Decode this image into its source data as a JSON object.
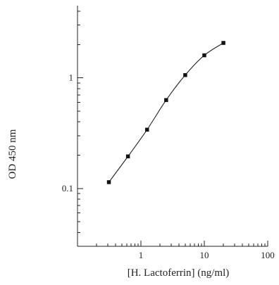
{
  "chart_data": {
    "type": "scatter",
    "xlabel": "[H. Lactoferrin] (ng/ml)",
    "ylabel": "OD 450 nm",
    "x_scale": "log",
    "y_scale": "log",
    "xlim": [
      0.1,
      100
    ],
    "ylim": [
      0.03,
      4.5
    ],
    "x_ticks": [
      {
        "value": 1,
        "label": "1"
      },
      {
        "value": 10,
        "label": "10"
      },
      {
        "value": 100,
        "label": "100"
      }
    ],
    "y_ticks": [
      {
        "value": 0.1,
        "label": "0.1"
      },
      {
        "value": 1,
        "label": "1"
      }
    ],
    "grid": false,
    "series": [
      {
        "x": [
          0.3125,
          0.625,
          1.25,
          2.5,
          5,
          10,
          20
        ],
        "y": [
          0.114,
          0.195,
          0.34,
          0.63,
          1.06,
          1.6,
          2.07
        ],
        "marker": "square",
        "fit_curve": true
      }
    ]
  }
}
